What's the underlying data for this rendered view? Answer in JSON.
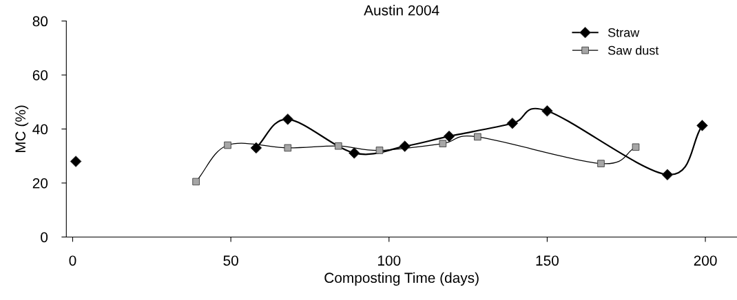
{
  "chart_data": {
    "type": "line",
    "title": "Austin 2004",
    "xlabel": "Composting Time (days)",
    "ylabel": "MC (%)",
    "xlim": [
      -2,
      210
    ],
    "xticks": [
      0,
      50,
      100,
      150,
      200
    ],
    "ylim": [
      0,
      80
    ],
    "yticks": [
      0,
      20,
      40,
      60,
      80
    ],
    "grid": false,
    "legend": "top right",
    "line_style": "solid",
    "series": [
      {
        "name": "Straw",
        "color": "#000000",
        "marker": "diamond",
        "x": [
          1,
          null,
          58,
          68,
          89,
          105,
          119,
          139,
          150,
          188,
          199
        ],
        "values": [
          28,
          null,
          33,
          43.6,
          31.1,
          33.6,
          37.3,
          42.1,
          46.7,
          23.1,
          41.3
        ]
      },
      {
        "name": "Saw dust",
        "color": "#a6a6a6",
        "marker": "square",
        "x": [
          39,
          49,
          68,
          84,
          97,
          117,
          128,
          167,
          178
        ],
        "values": [
          20.5,
          34,
          33,
          33.7,
          32.1,
          34.6,
          37.1,
          27.2,
          33.3
        ]
      }
    ]
  }
}
